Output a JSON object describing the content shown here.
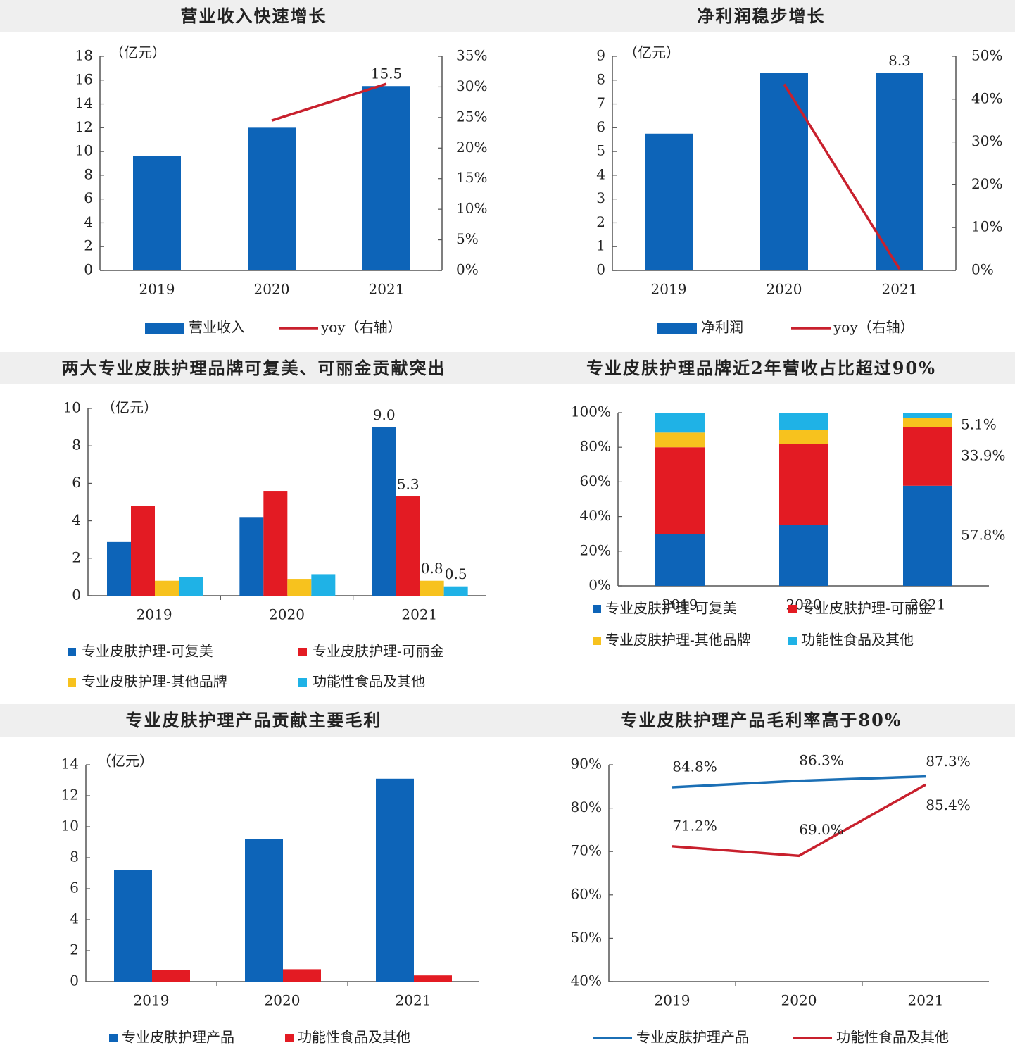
{
  "colors": {
    "blue": "#0d64b8",
    "red": "#e31b23",
    "yellow": "#f7c21e",
    "cyan": "#1fb2e6",
    "line_red": "#c8202d",
    "line_blue": "#1b6fb5",
    "axis": "#555555"
  },
  "chart_data": [
    {
      "id": "revenue",
      "type": "bar",
      "title": "营业收入快速增长",
      "unit_label": "（亿元）",
      "categories": [
        "2019",
        "2020",
        "2021"
      ],
      "ylim": [
        0,
        18
      ],
      "y_ticks": [
        "0",
        "2",
        "4",
        "6",
        "8",
        "10",
        "12",
        "14",
        "16",
        "18"
      ],
      "y2lim": [
        0,
        35
      ],
      "y2_ticks": [
        "0%",
        "5%",
        "10%",
        "15%",
        "20%",
        "25%",
        "30%",
        "35%"
      ],
      "series": [
        {
          "name": "营业收入",
          "kind": "bar",
          "color": "#0d64b8",
          "values": [
            9.6,
            12.0,
            15.5
          ]
        },
        {
          "name": "yoy（右轴）",
          "kind": "line",
          "color": "#c8202d",
          "axis": "right",
          "values": [
            null,
            24.5,
            30.5
          ]
        }
      ],
      "data_labels": [
        {
          "text": "15.5",
          "category": "2021",
          "series": 0
        }
      ],
      "legend": [
        "营业收入",
        "yoy（右轴）"
      ]
    },
    {
      "id": "net-profit",
      "type": "bar",
      "title": "净利润稳步增长",
      "unit_label": "（亿元）",
      "categories": [
        "2019",
        "2020",
        "2021"
      ],
      "ylim": [
        0,
        9
      ],
      "y_ticks": [
        "0",
        "1",
        "2",
        "3",
        "4",
        "5",
        "6",
        "7",
        "8",
        "9"
      ],
      "y2lim": [
        0,
        50
      ],
      "y2_ticks": [
        "0%",
        "10%",
        "20%",
        "30%",
        "40%",
        "50%"
      ],
      "series": [
        {
          "name": "净利润",
          "kind": "bar",
          "color": "#0d64b8",
          "values": [
            5.75,
            8.3,
            8.3
          ]
        },
        {
          "name": "yoy（右轴）",
          "kind": "line",
          "color": "#c8202d",
          "axis": "right",
          "values": [
            null,
            43.5,
            0.3
          ]
        }
      ],
      "data_labels": [
        {
          "text": "8.3",
          "category": "2021",
          "series": 0
        }
      ],
      "legend": [
        "净利润",
        "yoy（右轴）"
      ]
    },
    {
      "id": "brands",
      "type": "bar",
      "title": "两大专业皮肤护理品牌可复美、可丽金贡献突出",
      "unit_label": "（亿元）",
      "categories": [
        "2019",
        "2020",
        "2021"
      ],
      "ylim": [
        0,
        10
      ],
      "y_ticks": [
        "0",
        "2",
        "4",
        "6",
        "8",
        "10"
      ],
      "series": [
        {
          "name": "专业皮肤护理-可复美",
          "color": "#0d64b8",
          "values": [
            2.9,
            4.2,
            9.0
          ]
        },
        {
          "name": "专业皮肤护理-可丽金",
          "color": "#e31b23",
          "values": [
            4.8,
            5.6,
            5.3
          ]
        },
        {
          "name": "专业皮肤护理-其他品牌",
          "color": "#f7c21e",
          "values": [
            0.8,
            0.9,
            0.8
          ]
        },
        {
          "name": "功能性食品及其他",
          "color": "#1fb2e6",
          "values": [
            1.0,
            1.15,
            0.5
          ]
        }
      ],
      "data_labels": [
        {
          "text": "9.0",
          "category": "2021",
          "series": 0
        },
        {
          "text": "5.3",
          "category": "2021",
          "series": 1
        },
        {
          "text": "0.8",
          "category": "2021",
          "series": 2
        },
        {
          "text": "0.5",
          "category": "2021",
          "series": 3
        }
      ],
      "legend": [
        "专业皮肤护理-可复美",
        "专业皮肤护理-可丽金",
        "专业皮肤护理-其他品牌",
        "功能性食品及其他"
      ]
    },
    {
      "id": "share",
      "type": "bar",
      "stacked": true,
      "title": "专业皮肤护理品牌近2年营收占比超过90%",
      "categories": [
        "2019",
        "2020",
        "2021"
      ],
      "ylim": [
        0,
        100
      ],
      "y_ticks": [
        "0%",
        "20%",
        "40%",
        "60%",
        "80%",
        "100%"
      ],
      "series": [
        {
          "name": "专业皮肤护理-可复美",
          "color": "#0d64b8",
          "values": [
            30,
            35,
            57.8
          ]
        },
        {
          "name": "专业皮肤护理-可丽金",
          "color": "#e31b23",
          "values": [
            50,
            47,
            33.9
          ]
        },
        {
          "name": "专业皮肤护理-其他品牌",
          "color": "#f7c21e",
          "values": [
            8.5,
            8,
            5.1
          ]
        },
        {
          "name": "功能性食品及其他",
          "color": "#1fb2e6",
          "values": [
            11.5,
            10,
            3.2
          ]
        }
      ],
      "data_labels": [
        {
          "text": "5.1%",
          "category": "2021",
          "series": 2
        },
        {
          "text": "33.9%",
          "category": "2021",
          "series": 1
        },
        {
          "text": "57.8%",
          "category": "2021",
          "series": 0
        }
      ],
      "legend": [
        "专业皮肤护理-可复美",
        "专业皮肤护理-可丽金",
        "专业皮肤护理-其他品牌",
        "功能性食品及其他"
      ]
    },
    {
      "id": "gross-profit",
      "type": "bar",
      "title": "专业皮肤护理产品贡献主要毛利",
      "unit_label": "（亿元）",
      "categories": [
        "2019",
        "2020",
        "2021"
      ],
      "ylim": [
        0,
        14
      ],
      "y_ticks": [
        "0",
        "2",
        "4",
        "6",
        "8",
        "10",
        "12",
        "14"
      ],
      "series": [
        {
          "name": "专业皮肤护理产品",
          "color": "#0d64b8",
          "values": [
            7.2,
            9.2,
            13.1
          ]
        },
        {
          "name": "功能性食品及其他",
          "color": "#e31b23",
          "values": [
            0.75,
            0.8,
            0.4
          ]
        }
      ],
      "legend": [
        "专业皮肤护理产品",
        "功能性食品及其他"
      ]
    },
    {
      "id": "margin",
      "type": "line",
      "title": "专业皮肤护理产品毛利率高于80%",
      "categories": [
        "2019",
        "2020",
        "2021"
      ],
      "ylim": [
        40,
        90
      ],
      "y_ticks": [
        "40%",
        "50%",
        "60%",
        "70%",
        "80%",
        "90%"
      ],
      "series": [
        {
          "name": "专业皮肤护理产品",
          "color": "#1b6fb5",
          "values": [
            84.8,
            86.3,
            87.3
          ],
          "labels": [
            "84.8%",
            "86.3%",
            "87.3%"
          ]
        },
        {
          "name": "功能性食品及其他",
          "color": "#c8202d",
          "values": [
            71.2,
            69.0,
            85.4
          ],
          "labels": [
            "71.2%",
            "69.0%",
            "85.4%"
          ]
        }
      ],
      "legend": [
        "专业皮肤护理产品",
        "功能性食品及其他"
      ]
    }
  ]
}
